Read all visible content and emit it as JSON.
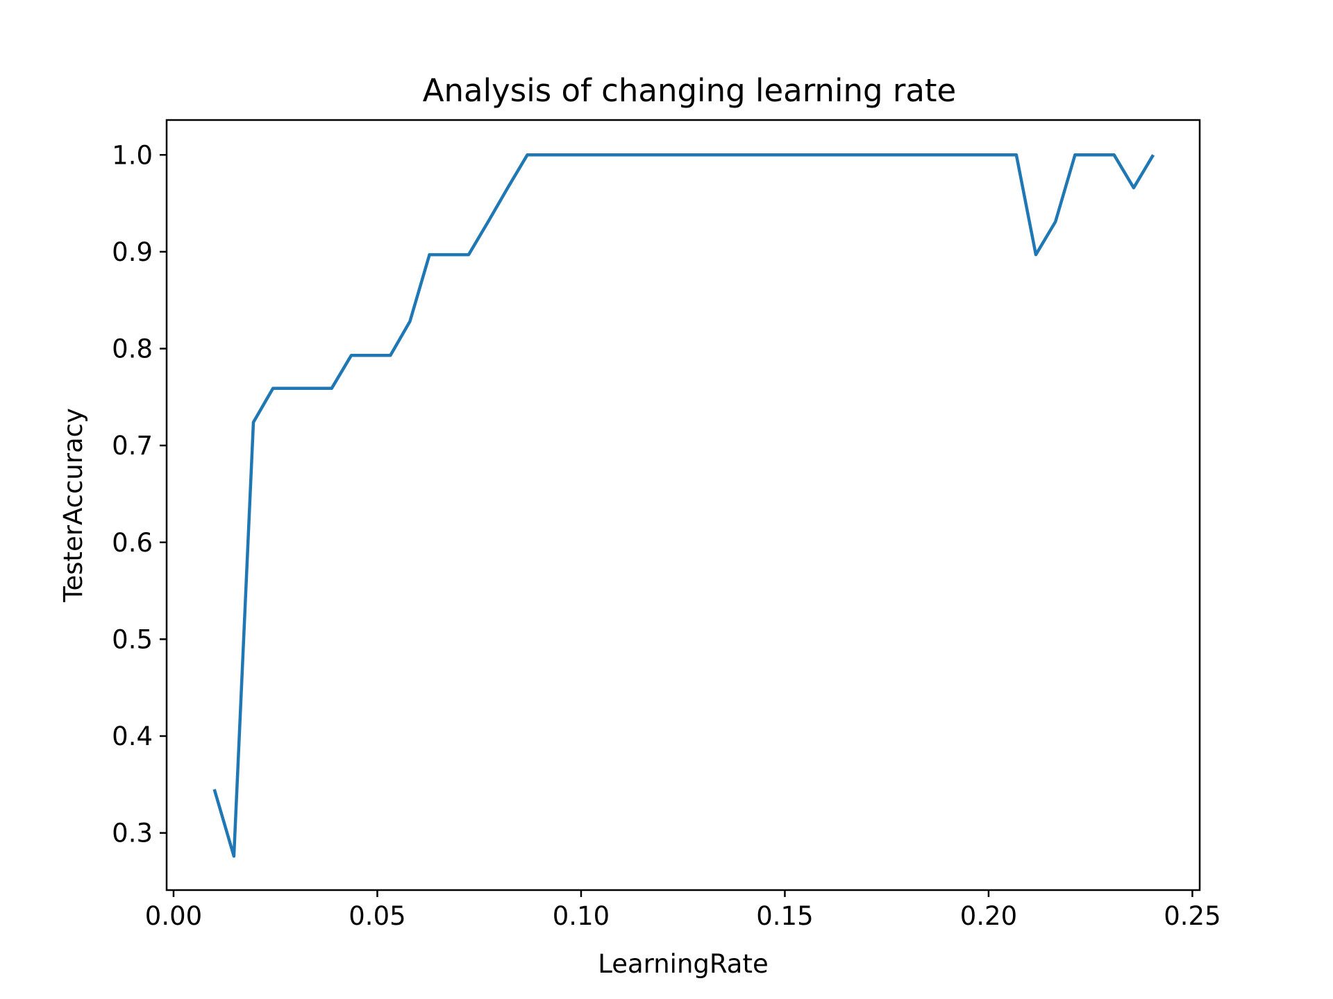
{
  "chart_data": {
    "type": "line",
    "title": "Analysis of changing learning rate",
    "xlabel": "LearningRate",
    "ylabel": "TesterAccuracy",
    "xlim": [
      -0.0017,
      0.2518
    ],
    "ylim": [
      0.241,
      1.036
    ],
    "grid": false,
    "x_ticks": [
      "0.00",
      "0.05",
      "0.10",
      "0.15",
      "0.20",
      "0.25"
    ],
    "x_tick_values": [
      0.0,
      0.05,
      0.1,
      0.15,
      0.2,
      0.25
    ],
    "y_ticks": [
      "0.3",
      "0.4",
      "0.5",
      "0.6",
      "0.7",
      "0.8",
      "0.9",
      "1.0"
    ],
    "y_tick_values": [
      0.3,
      0.4,
      0.5,
      0.6,
      0.7,
      0.8,
      0.9,
      1.0
    ],
    "series": [
      {
        "color": "#1f77b4",
        "x": [
          0.01,
          0.0148,
          0.0196,
          0.0244,
          0.0292,
          0.034,
          0.0388,
          0.0436,
          0.0484,
          0.0532,
          0.058,
          0.0628,
          0.0676,
          0.0724,
          0.0772,
          0.082,
          0.0868,
          0.0916,
          0.0964,
          0.1012,
          0.106,
          0.1108,
          0.1156,
          0.1204,
          0.1252,
          0.13,
          0.1348,
          0.1396,
          0.1444,
          0.1492,
          0.154,
          0.1588,
          0.1636,
          0.1684,
          0.1732,
          0.178,
          0.1828,
          0.1876,
          0.1924,
          0.1972,
          0.202,
          0.2068,
          0.2116,
          0.2164,
          0.2212,
          0.226,
          0.2308,
          0.2356,
          0.2404
        ],
        "values": [
          0.345,
          0.276,
          0.724,
          0.759,
          0.759,
          0.759,
          0.759,
          0.793,
          0.793,
          0.793,
          0.828,
          0.897,
          0.897,
          0.897,
          0.931,
          0.966,
          1.0,
          1.0,
          1.0,
          1.0,
          1.0,
          1.0,
          1.0,
          1.0,
          1.0,
          1.0,
          1.0,
          1.0,
          1.0,
          1.0,
          1.0,
          1.0,
          1.0,
          1.0,
          1.0,
          1.0,
          1.0,
          1.0,
          1.0,
          1.0,
          1.0,
          1.0,
          0.897,
          0.931,
          1.0,
          1.0,
          1.0,
          0.966,
          1.0
        ]
      }
    ]
  }
}
